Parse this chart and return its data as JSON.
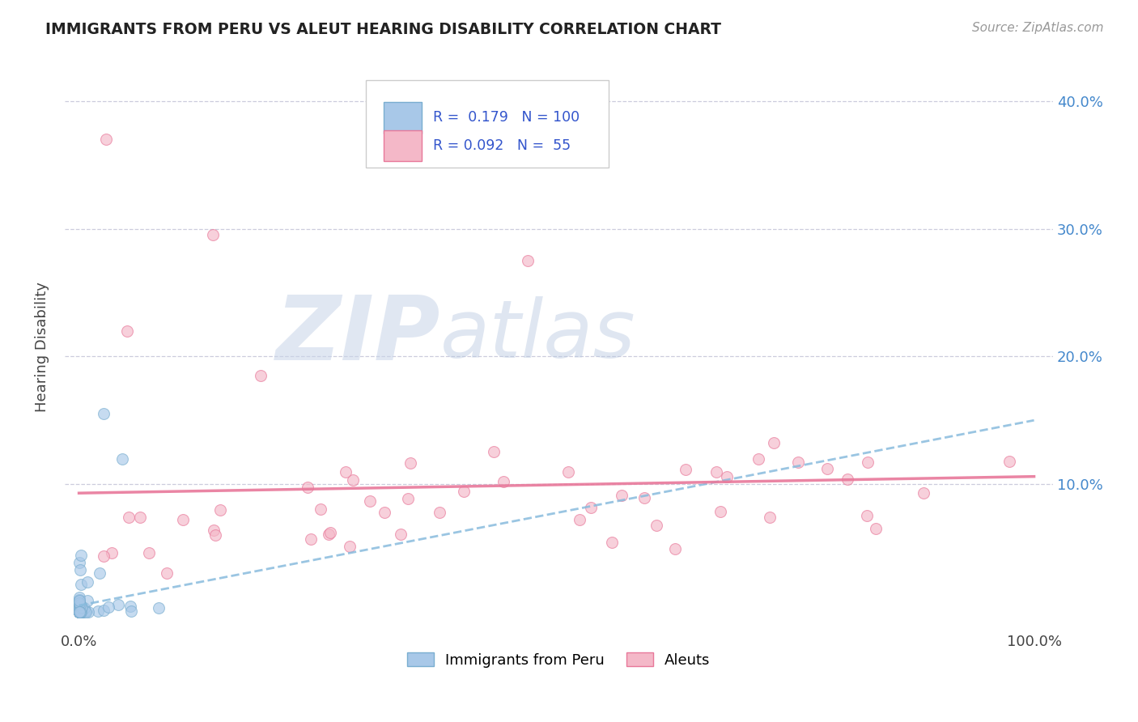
{
  "title": "IMMIGRANTS FROM PERU VS ALEUT HEARING DISABILITY CORRELATION CHART",
  "source": "Source: ZipAtlas.com",
  "ylabel": "Hearing Disability",
  "color_peru": "#a8c8e8",
  "color_aleut": "#f4b8c8",
  "edge_peru": "#7aaed0",
  "edge_aleut": "#e8789a",
  "trendline_peru_color": "#88bbdd",
  "trendline_aleut_color": "#e8789a",
  "background_color": "#ffffff",
  "grid_color": "#ccccdd",
  "watermark_color": "#dde8f4",
  "legend_text_color": "#3355cc",
  "title_color": "#222222",
  "ytick_color": "#4488cc",
  "xtick_color": "#444444"
}
